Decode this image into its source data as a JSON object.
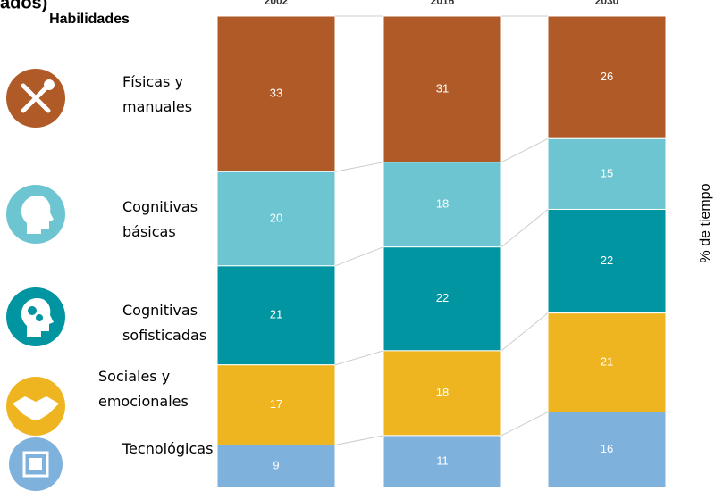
{
  "chart_data": {
    "type": "stacked-bar",
    "title": "ados)",
    "legend_title": "Habilidades",
    "y_label": "% de tiempo",
    "categories": [
      "2002",
      "2016",
      "2030"
    ],
    "ylim": [
      0,
      100
    ],
    "series": [
      {
        "name": "Físicas y manuales",
        "color": "#b05a27",
        "values": [
          33,
          31,
          26
        ]
      },
      {
        "name": "Cognitivas básicas",
        "color": "#6cc5d0",
        "values": [
          20,
          18,
          15
        ]
      },
      {
        "name": "Cognitivas sofisticadas",
        "color": "#0095a0",
        "values": [
          21,
          22,
          22
        ]
      },
      {
        "name": "Sociales y emocionales",
        "color": "#efb520",
        "values": [
          17,
          18,
          21
        ]
      },
      {
        "name": "Tecnológicas",
        "color": "#7fb1dd",
        "values": [
          9,
          11,
          16
        ]
      }
    ]
  }
}
